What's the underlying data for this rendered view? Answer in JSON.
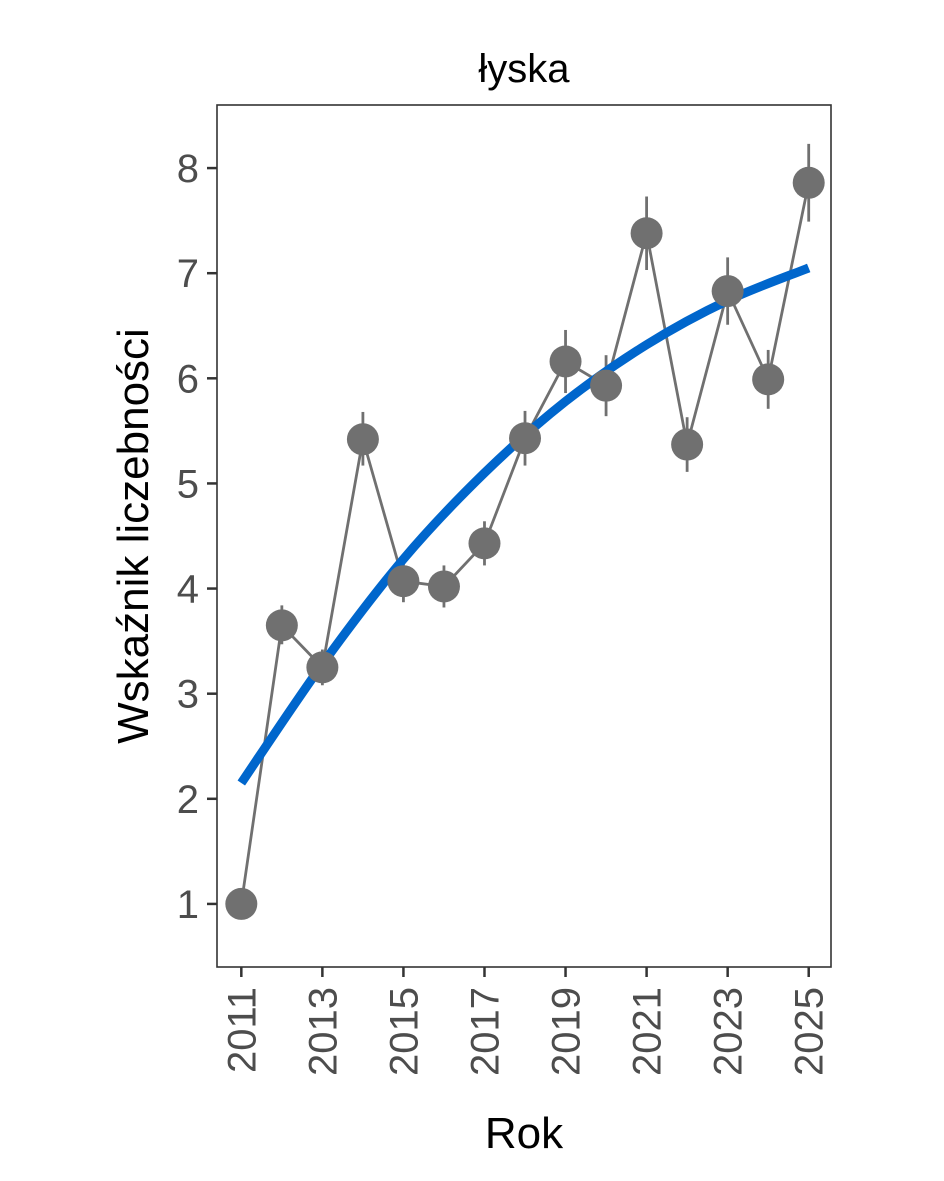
{
  "chart_data": {
    "type": "line",
    "title": "łyska",
    "xlabel": "Rok",
    "ylabel": "Wskaźnik liczebności",
    "xlim": [
      2010.4,
      2025.55
    ],
    "ylim": [
      0.4,
      8.6
    ],
    "x_ticks": [
      2011,
      2013,
      2015,
      2017,
      2019,
      2021,
      2023,
      2025
    ],
    "y_ticks": [
      1,
      2,
      3,
      4,
      5,
      6,
      7,
      8
    ],
    "grid": false,
    "legend": "none",
    "series": [
      {
        "kind": "points-with-errorbars",
        "color": "#707070",
        "x": [
          2011,
          2012,
          2013,
          2014,
          2015,
          2016,
          2017,
          2018,
          2019,
          2020,
          2021,
          2022,
          2023,
          2024,
          2025
        ],
        "y": [
          1.0,
          3.65,
          3.25,
          5.42,
          4.07,
          4.02,
          4.43,
          5.43,
          6.16,
          5.93,
          7.38,
          5.37,
          6.83,
          5.99,
          7.86
        ],
        "lower": [
          1.0,
          3.47,
          3.08,
          5.17,
          3.87,
          3.82,
          4.22,
          5.17,
          5.86,
          5.64,
          7.03,
          5.11,
          6.51,
          5.71,
          7.49
        ],
        "upper": [
          1.0,
          3.84,
          3.42,
          5.68,
          4.27,
          4.22,
          4.64,
          5.69,
          6.46,
          6.22,
          7.73,
          5.63,
          7.15,
          6.27,
          8.23
        ]
      },
      {
        "kind": "trend",
        "color": "#0066cc",
        "x": [
          2011,
          2013,
          2015,
          2017,
          2019,
          2021,
          2023,
          2025
        ],
        "y": [
          2.15,
          3.28,
          4.28,
          5.1,
          5.78,
          6.32,
          6.74,
          7.05
        ]
      }
    ]
  }
}
